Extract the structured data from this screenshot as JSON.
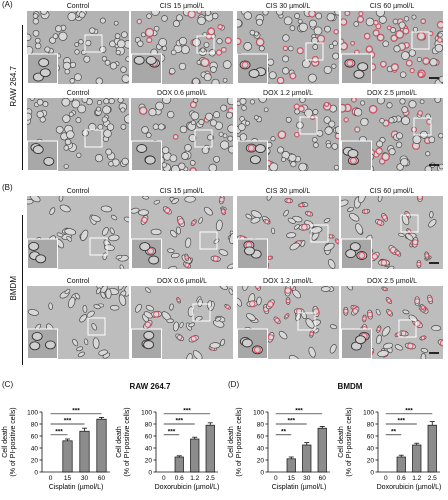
{
  "panels": {
    "A": "(A)",
    "B": "(B)",
    "C": "(C)",
    "D": "(D)"
  },
  "cell_types": {
    "A": "RAW 264.7",
    "B": "BMDM"
  },
  "rows": [
    {
      "labels": [
        "Control",
        "CIS 15 µmol/L",
        "CIS 30 µmol/L",
        "CIS 60 µmol/L"
      ],
      "style": "raw",
      "pi": [
        0,
        0.15,
        0.25,
        0.55
      ]
    },
    {
      "labels": [
        "Control",
        "DOX 0.6 µmol/L",
        "DOX 1.2 µmol/L",
        "DOX 2.5 µmol/L"
      ],
      "style": "raw",
      "pi": [
        0,
        0.1,
        0.2,
        0.3
      ]
    },
    {
      "labels": [
        "Control",
        "CIS 15 µmol/L",
        "CIS 30 µmol/L",
        "CIS 60 µmol/L"
      ],
      "style": "bmdm",
      "pi": [
        0,
        0.2,
        0.35,
        0.6
      ]
    },
    {
      "labels": [
        "Control",
        "DOX 0.6 µmol/L",
        "DOX 1.2 µmol/L",
        "DOX 2.5 µmol/L"
      ],
      "style": "bmdm",
      "pi": [
        0,
        0.15,
        0.4,
        0.6
      ]
    }
  ],
  "section_titles": {
    "C": "RAW 264.7",
    "D": "BMDM"
  },
  "chart_data": [
    {
      "type": "bar",
      "panel": "C",
      "categories": [
        "0",
        "15",
        "30",
        "60"
      ],
      "values": [
        0,
        52,
        68,
        88
      ],
      "error": [
        0,
        3,
        5,
        3
      ],
      "xlabel": "Cisplatin (µmol/L)",
      "ylabel": [
        "Cell death",
        "(% of PI-positive cells)"
      ],
      "ylim": [
        0,
        100
      ],
      "yticks": [
        0,
        20,
        40,
        60,
        80,
        100
      ],
      "significance": [
        {
          "from": 0,
          "to": 1,
          "label": "***"
        },
        {
          "from": 0,
          "to": 2,
          "label": "***"
        },
        {
          "from": 0,
          "to": 3,
          "label": "***"
        }
      ]
    },
    {
      "type": "bar",
      "panel": "C",
      "categories": [
        "0",
        "0.6",
        "1.2",
        "2.5"
      ],
      "values": [
        0,
        25,
        55,
        78
      ],
      "error": [
        0,
        2,
        3,
        4
      ],
      "xlabel": "Doxorubicin (µmol/L)",
      "ylabel": [
        "Cell death",
        "(% of PI-positive cells)"
      ],
      "ylim": [
        0,
        100
      ],
      "yticks": [
        0,
        20,
        40,
        60,
        80,
        100
      ],
      "significance": [
        {
          "from": 0,
          "to": 1,
          "label": "***"
        },
        {
          "from": 0,
          "to": 2,
          "label": "***"
        },
        {
          "from": 0,
          "to": 3,
          "label": "***"
        }
      ]
    },
    {
      "type": "bar",
      "panel": "D",
      "categories": [
        "0",
        "15",
        "30",
        "60"
      ],
      "values": [
        0,
        22,
        45,
        73
      ],
      "error": [
        0,
        3,
        4,
        3
      ],
      "xlabel": "Cisplatin (µmol/L)",
      "ylabel": [
        "Cell death",
        "(% of PI-positive cells)"
      ],
      "ylim": [
        0,
        100
      ],
      "yticks": [
        0,
        20,
        40,
        60,
        80,
        100
      ],
      "significance": [
        {
          "from": 0,
          "to": 1,
          "label": "**"
        },
        {
          "from": 0,
          "to": 2,
          "label": "***"
        },
        {
          "from": 0,
          "to": 3,
          "label": "***"
        }
      ]
    },
    {
      "type": "bar",
      "panel": "D",
      "categories": [
        "0",
        "0.6",
        "1.2",
        "2.5"
      ],
      "values": [
        0,
        25,
        45,
        78
      ],
      "error": [
        0,
        3,
        3,
        6
      ],
      "xlabel": "Doxorubicin (µmol/L)",
      "ylabel": [
        "Cell death",
        "(% of PI-positive cells)"
      ],
      "ylim": [
        0,
        100
      ],
      "yticks": [
        0,
        20,
        40,
        60,
        80,
        100
      ],
      "significance": [
        {
          "from": 0,
          "to": 1,
          "label": "**"
        },
        {
          "from": 0,
          "to": 2,
          "label": "***"
        },
        {
          "from": 0,
          "to": 3,
          "label": "***"
        }
      ]
    }
  ]
}
